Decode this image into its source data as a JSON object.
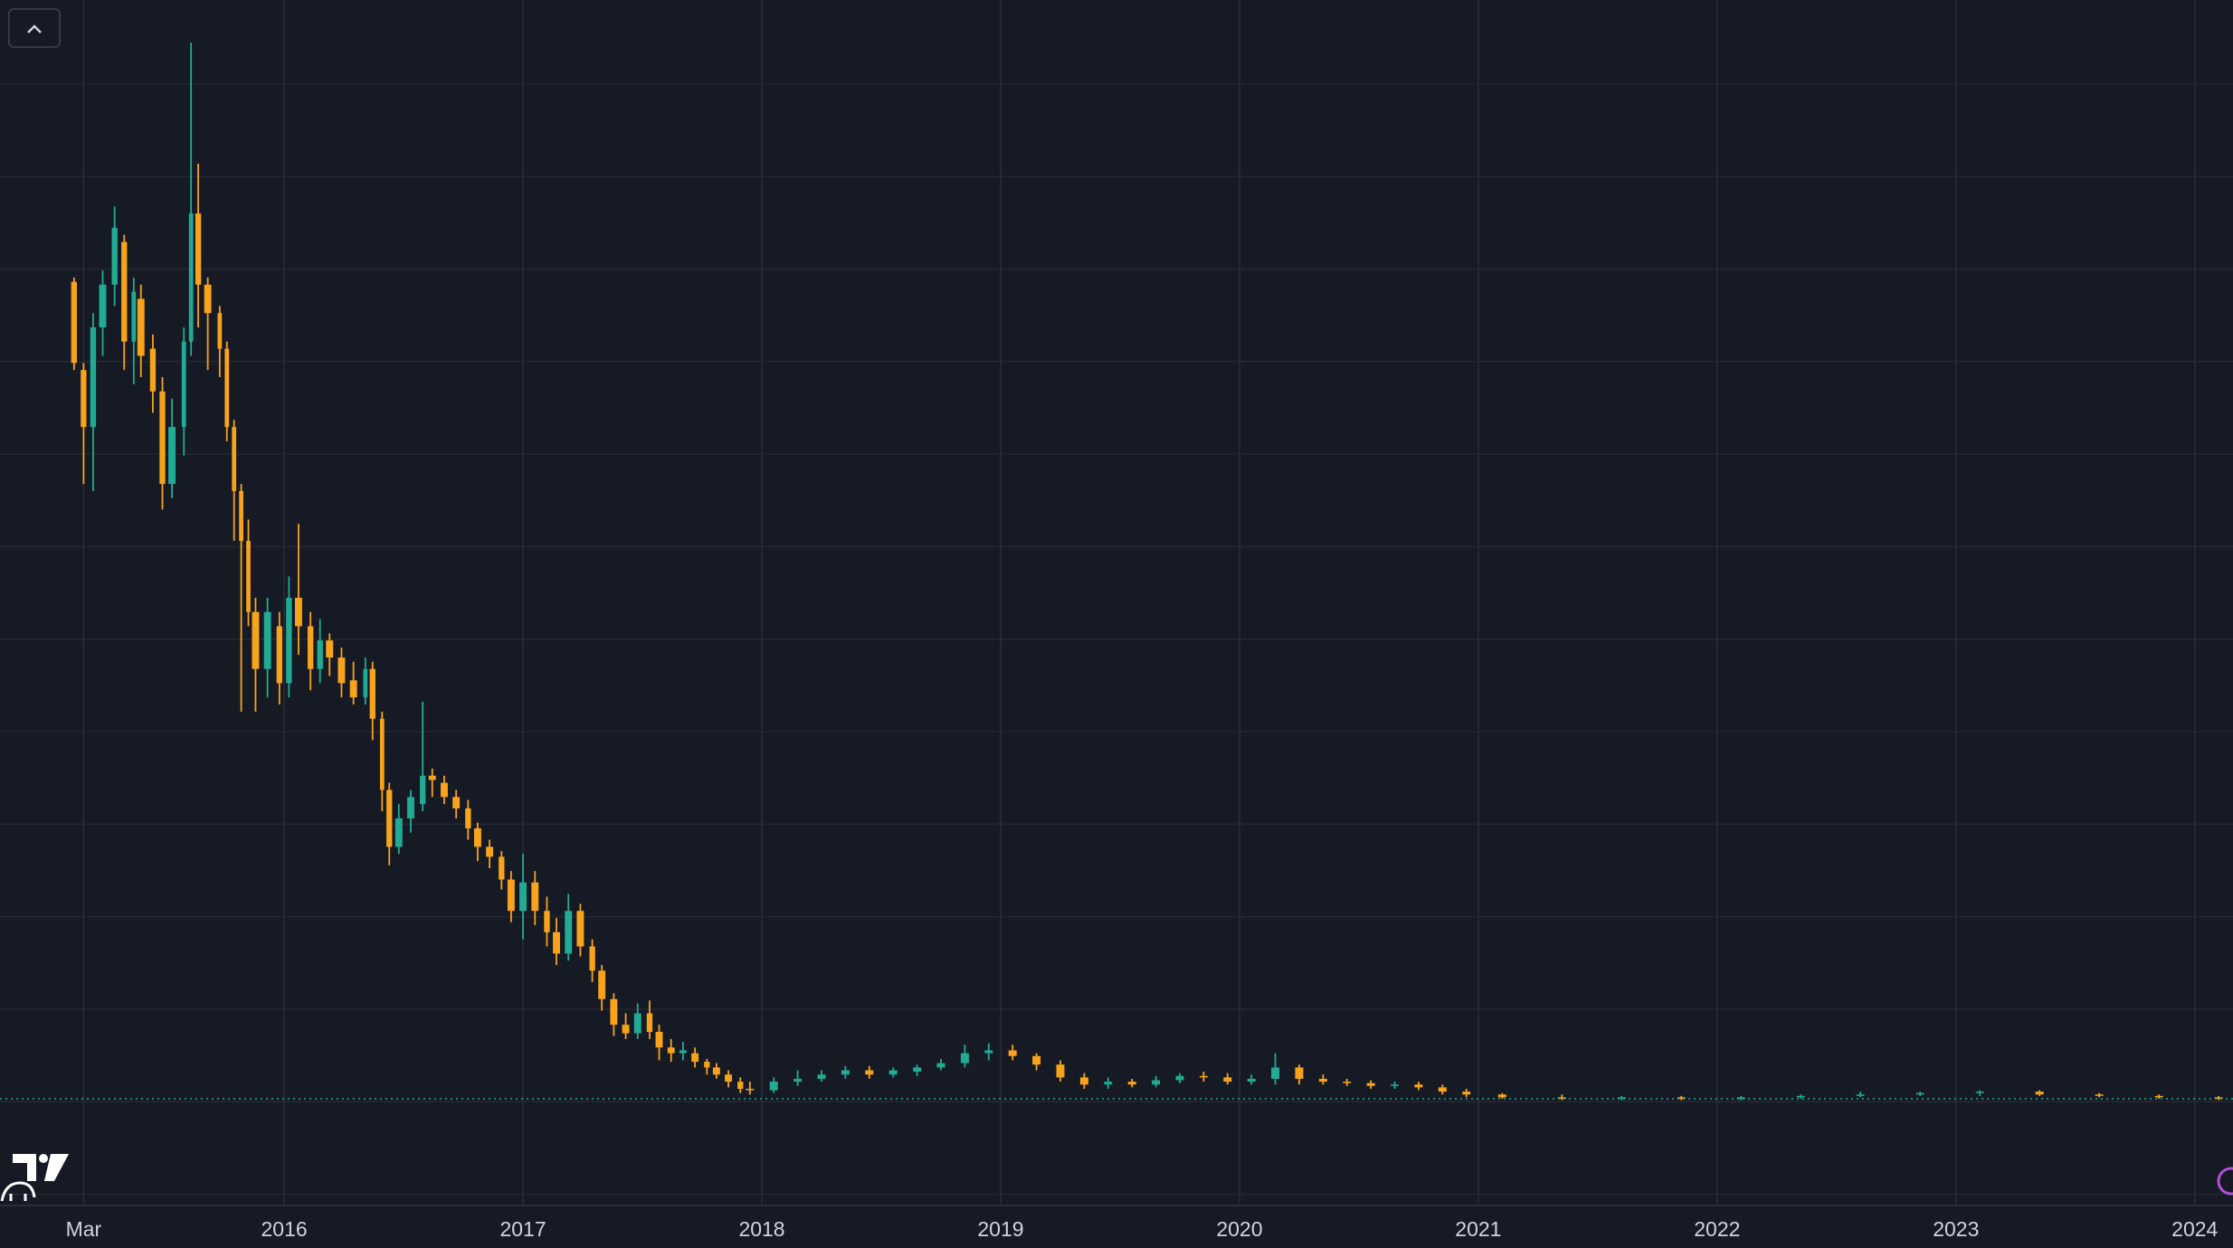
{
  "chart_data": {
    "type": "candlestick",
    "up_color": "#22ab94",
    "down_color": "#f7a31c",
    "last_price_line": true,
    "x": [
      2015.12,
      2015.16,
      2015.2,
      2015.24,
      2015.29,
      2015.33,
      2015.37,
      2015.4,
      2015.45,
      2015.49,
      2015.53,
      2015.58,
      2015.61,
      2015.64,
      2015.68,
      2015.73,
      2015.76,
      2015.79,
      2015.82,
      2015.85,
      2015.88,
      2015.93,
      2015.98,
      2016.02,
      2016.06,
      2016.11,
      2016.15,
      2016.19,
      2016.24,
      2016.29,
      2016.34,
      2016.37,
      2016.41,
      2016.44,
      2016.48,
      2016.53,
      2016.58,
      2016.62,
      2016.67,
      2016.72,
      2016.77,
      2016.81,
      2016.86,
      2016.91,
      2016.95,
      2017.0,
      2017.05,
      2017.1,
      2017.14,
      2017.19,
      2017.24,
      2017.29,
      2017.33,
      2017.38,
      2017.43,
      2017.48,
      2017.53,
      2017.57,
      2017.62,
      2017.67,
      2017.72,
      2017.77,
      2017.81,
      2017.86,
      2017.91,
      2017.95,
      2018.05,
      2018.15,
      2018.25,
      2018.35,
      2018.45,
      2018.55,
      2018.65,
      2018.75,
      2018.85,
      2018.95,
      2019.05,
      2019.15,
      2019.25,
      2019.35,
      2019.45,
      2019.55,
      2019.65,
      2019.75,
      2019.85,
      2019.95,
      2020.05,
      2020.15,
      2020.25,
      2020.35,
      2020.45,
      2020.55,
      2020.65,
      2020.75,
      2020.85,
      2020.95,
      2021.1,
      2021.35,
      2021.6,
      2021.85,
      2022.1,
      2022.35,
      2022.6,
      2022.85,
      2023.1,
      2023.35,
      2023.6,
      2023.85,
      2024.1
    ],
    "open": [
      649,
      587,
      547,
      617,
      647,
      677,
      607,
      637,
      602,
      572,
      507,
      547,
      607,
      697,
      647,
      627,
      602,
      547,
      502,
      467,
      417,
      377,
      407,
      367,
      427,
      407,
      377,
      397,
      385,
      369,
      357,
      377,
      342,
      292,
      252,
      272,
      282,
      302,
      297,
      287,
      279,
      265,
      252,
      245,
      229,
      207,
      227,
      207,
      192,
      177,
      207,
      182,
      165,
      145,
      127,
      121,
      135,
      122,
      111,
      107,
      107,
      101,
      97,
      92,
      87,
      82,
      81,
      87,
      89,
      92,
      95,
      92,
      94,
      97,
      100,
      107,
      109,
      105,
      99,
      90,
      85,
      87,
      85,
      88,
      91,
      90,
      87,
      89,
      97,
      89,
      87,
      86,
      84,
      85,
      83,
      80,
      78,
      76,
      75,
      76,
      75,
      76,
      77,
      78,
      79,
      80,
      78,
      77,
      76
    ],
    "high": [
      652,
      592,
      627,
      657,
      702,
      682,
      652,
      647,
      612,
      582,
      567,
      617,
      817,
      732,
      652,
      632,
      607,
      552,
      507,
      482,
      427,
      427,
      417,
      442,
      479,
      417,
      412,
      402,
      392,
      382,
      385,
      382,
      347,
      297,
      282,
      292,
      354,
      307,
      302,
      292,
      285,
      269,
      257,
      249,
      235,
      247,
      235,
      217,
      202,
      219,
      212,
      187,
      169,
      149,
      135,
      142,
      144,
      127,
      117,
      115,
      111,
      103,
      100,
      95,
      90,
      87,
      90,
      95,
      95,
      98,
      98,
      97,
      99,
      103,
      113,
      114,
      113,
      107,
      102,
      93,
      90,
      89,
      91,
      93,
      94,
      93,
      92,
      107,
      99,
      92,
      89,
      88,
      87,
      87,
      85,
      82,
      79,
      78,
      77,
      77,
      77,
      78,
      80,
      80,
      81,
      81,
      79,
      78,
      77
    ],
    "low": [
      587,
      507,
      502,
      597,
      632,
      587,
      577,
      582,
      557,
      489,
      497,
      527,
      597,
      617,
      587,
      582,
      537,
      467,
      347,
      407,
      347,
      357,
      352,
      357,
      387,
      362,
      367,
      372,
      357,
      352,
      352,
      327,
      277,
      239,
      247,
      262,
      277,
      287,
      282,
      272,
      257,
      242,
      237,
      222,
      199,
      187,
      197,
      182,
      169,
      172,
      175,
      157,
      137,
      119,
      117,
      117,
      117,
      102,
      101,
      102,
      97,
      92,
      89,
      83,
      79,
      78,
      79,
      84,
      87,
      89,
      89,
      90,
      91,
      95,
      97,
      102,
      102,
      95,
      87,
      82,
      82,
      83,
      83,
      86,
      87,
      85,
      85,
      85,
      85,
      85,
      84,
      82,
      82,
      81,
      78,
      76,
      75,
      74,
      74,
      74,
      74,
      75,
      76,
      77,
      77,
      77,
      76,
      75,
      74
    ],
    "close": [
      592,
      547,
      617,
      647,
      687,
      607,
      642,
      597,
      572,
      507,
      547,
      607,
      697,
      647,
      627,
      602,
      547,
      502,
      467,
      417,
      377,
      417,
      367,
      427,
      407,
      377,
      397,
      385,
      367,
      357,
      377,
      342,
      292,
      252,
      272,
      287,
      302,
      299,
      287,
      279,
      265,
      252,
      245,
      229,
      207,
      227,
      207,
      192,
      177,
      207,
      182,
      165,
      145,
      127,
      121,
      135,
      122,
      111,
      107,
      109,
      101,
      97,
      92,
      87,
      82,
      81,
      87,
      89,
      92,
      95,
      92,
      95,
      97,
      100,
      107,
      109,
      105,
      99,
      90,
      85,
      87,
      85,
      88,
      91,
      90,
      87,
      89,
      97,
      89,
      87,
      86,
      84,
      85,
      83,
      80,
      78,
      76,
      75,
      76,
      75,
      76,
      77,
      78,
      79,
      80,
      78,
      77,
      76,
      75
    ],
    "xlim": [
      2014.81,
      2024.16
    ],
    "ylim": [
      0,
      847
    ],
    "xticks": [
      {
        "value": 2015.16,
        "label": "Mar"
      },
      2016,
      2017,
      2018,
      2019,
      2020,
      2021,
      2022,
      2023,
      2024
    ]
  }
}
